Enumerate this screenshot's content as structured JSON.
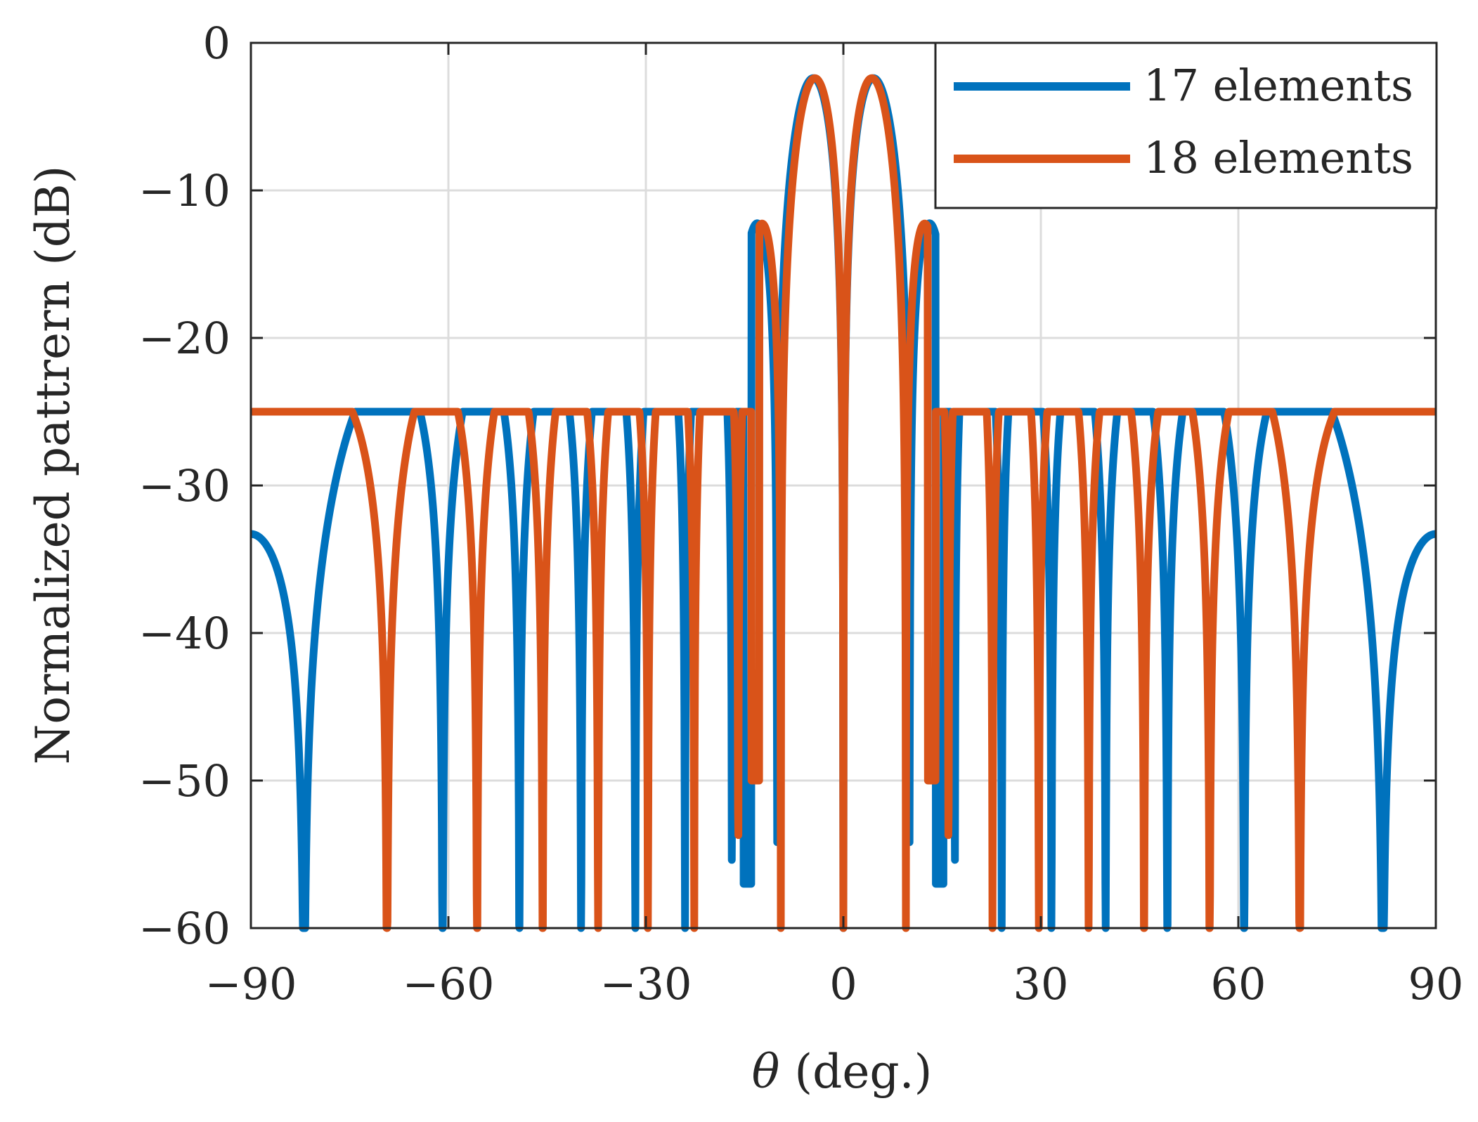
{
  "chart_data": {
    "type": "line",
    "title": "",
    "xlabel": "θ (deg.)",
    "xlabel_symbol": "θ",
    "xlabel_rest": " (deg.)",
    "ylabel": "Normalized pattrern (dB)",
    "xlim": [
      -90,
      90
    ],
    "ylim": [
      -60,
      0
    ],
    "xticks": [
      -90,
      -60,
      -30,
      0,
      30,
      60,
      90
    ],
    "yticks": [
      0,
      -10,
      -20,
      -30,
      -40,
      -50,
      -60
    ],
    "xtick_labels": [
      "−90",
      "−60",
      "−30",
      "0",
      "30",
      "60",
      "90"
    ],
    "ytick_labels": [
      "0",
      "−10",
      "−20",
      "−30",
      "−40",
      "−50",
      "−60"
    ],
    "grid": true,
    "legend_position": "top-right",
    "series": [
      {
        "name": "17 elements",
        "color": "#0072BD",
        "elements": 17,
        "peak_angles_deg": [
          -5.5,
          5.5
        ],
        "null_angles_deg": [
          0
        ],
        "sidelobe_level_db": -25,
        "sidelobe_start_deg": 14,
        "first_null_depth_db": -57
      },
      {
        "name": "18 elements",
        "color": "#D95319",
        "elements": 18,
        "peak_angles_deg": [
          -5.2,
          5.2
        ],
        "null_angles_deg": [
          0
        ],
        "sidelobe_level_db": -25,
        "sidelobe_start_deg": 12.8,
        "first_null_depth_db": -50
      }
    ]
  },
  "legend": {
    "items": [
      {
        "label": "17 elements",
        "color": "#0072BD"
      },
      {
        "label": "18 elements",
        "color": "#D95319"
      }
    ]
  }
}
